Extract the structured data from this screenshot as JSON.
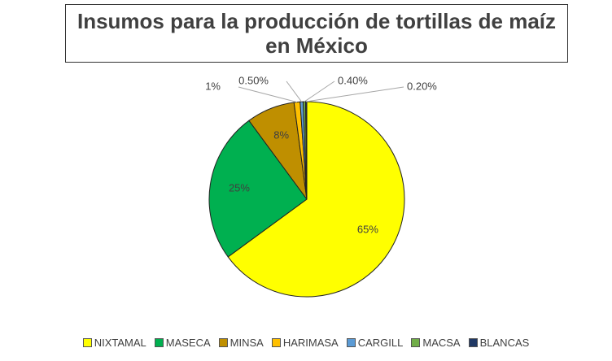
{
  "chart_data": {
    "type": "pie",
    "title": "Insumos para la producción de tortillas de maíz en México",
    "categories": [
      "NIXTAMAL",
      "MASECA",
      "MINSA",
      "HARIMASA",
      "CARGILL",
      "MACSA",
      "BLANCAS"
    ],
    "values": [
      65,
      25,
      8,
      1,
      0.5,
      0.4,
      0.2
    ],
    "value_labels": [
      "65%",
      "25%",
      "8%",
      "1%",
      "0.50%",
      "0.40%",
      "0.20%"
    ],
    "colors": [
      "#ffff00",
      "#00b050",
      "#bf8f00",
      "#ffc000",
      "#5b9bd5",
      "#70ad47",
      "#203864"
    ],
    "legend": "bottom"
  }
}
